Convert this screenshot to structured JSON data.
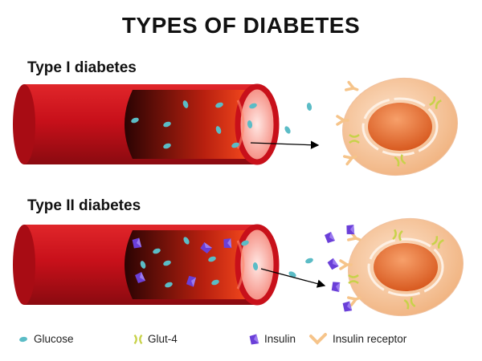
{
  "title": "TYPES OF DIABETES",
  "sections": [
    {
      "label": "Type I diabetes"
    },
    {
      "label": "Type II diabetes"
    }
  ],
  "legend": [
    {
      "label": "Glucose",
      "icon": "glucose-icon",
      "color": "#5bbcc6"
    },
    {
      "label": "Glut-4",
      "icon": "glut4-icon",
      "color": "#c8d24a"
    },
    {
      "label": "Insulin",
      "icon": "insulin-icon",
      "color": "#6a3fd8"
    },
    {
      "label": "Insulin receptor",
      "icon": "insulin-receptor-icon",
      "color": "#f6c48a"
    }
  ],
  "colors": {
    "vessel": "#c8101a",
    "cell": "#f7c9a0",
    "nucleus": "#ef7a3a"
  }
}
